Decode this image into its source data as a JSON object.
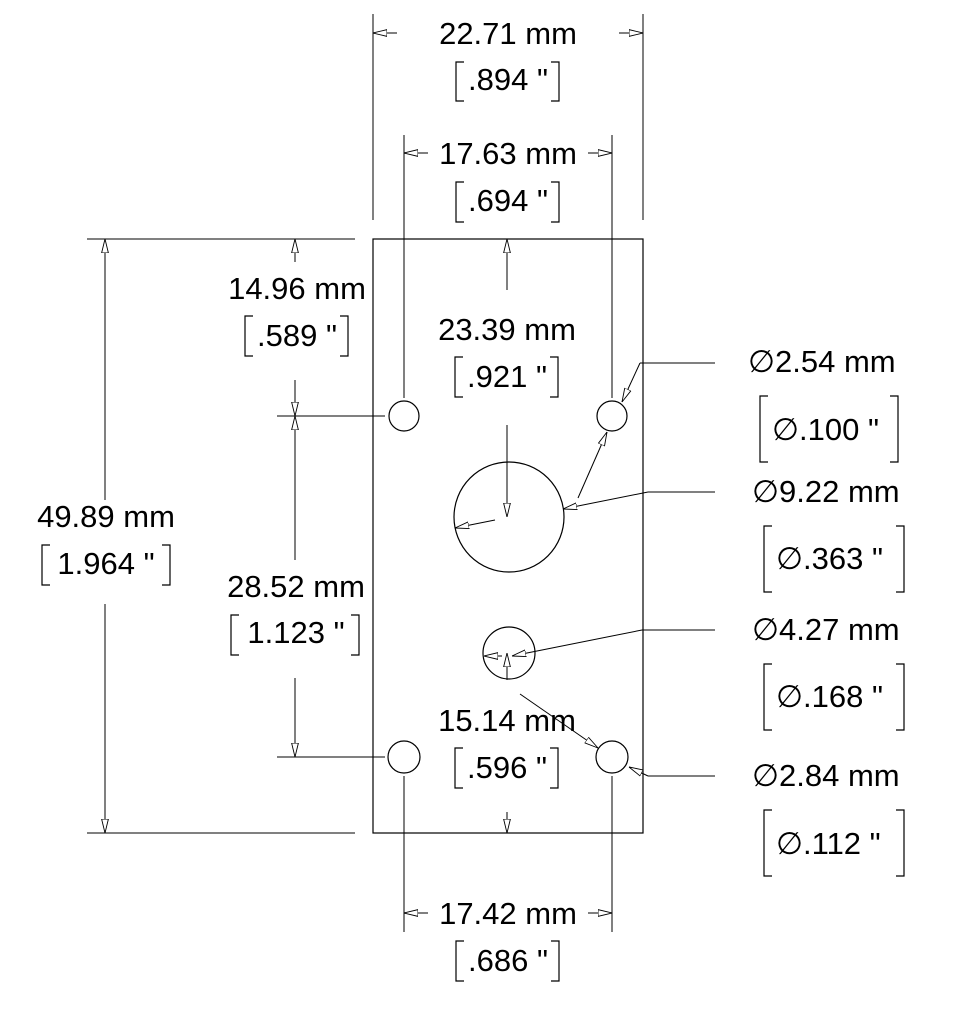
{
  "dimensions": {
    "top_width": {
      "metric": "22.71 mm",
      "imperial": ".894 \""
    },
    "top_hole_spacing": {
      "metric": "17.63 mm",
      "imperial": ".694 \""
    },
    "top_hole_offset": {
      "metric": "14.96 mm",
      "imperial": ".589 \""
    },
    "large_hole_offset": {
      "metric": "23.39 mm",
      "imperial": ".921 \""
    },
    "overall_height": {
      "metric": "49.89 mm",
      "imperial": "1.964 \""
    },
    "hole_vertical_spacing": {
      "metric": "28.52 mm",
      "imperial": "1.123 \""
    },
    "small_hole_offset": {
      "metric": "15.14 mm",
      "imperial": ".596 \""
    },
    "bottom_hole_spacing": {
      "metric": "17.42 mm",
      "imperial": ".686 \""
    }
  },
  "hole_callouts": [
    {
      "metric": "2.54 mm",
      "imperial": ".100 \""
    },
    {
      "metric": "9.22 mm",
      "imperial": ".363 \""
    },
    {
      "metric": "4.27 mm",
      "imperial": ".168 \""
    },
    {
      "metric": "2.84 mm",
      "imperial": ".112 \""
    }
  ],
  "diameter_symbol": "∅"
}
